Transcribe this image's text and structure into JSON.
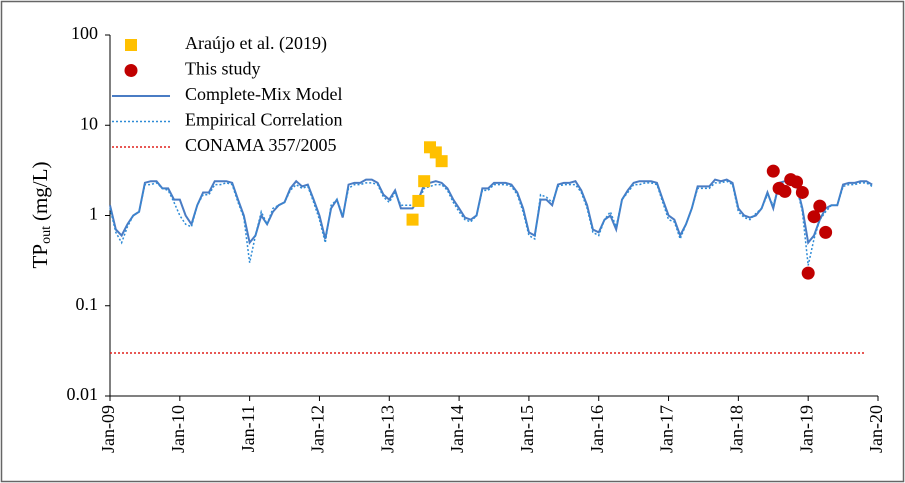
{
  "chart_data": {
    "type": "line",
    "y_label": {
      "main": "TP",
      "sub": "out",
      "unit": "(mg/L)"
    },
    "log_y": true,
    "ylim": [
      0.01,
      100
    ],
    "yticks": [
      0.01,
      0.1,
      1,
      10,
      100
    ],
    "xlim": [
      "2009-01",
      "2020-01"
    ],
    "xticks": [
      {
        "value": "2009-01",
        "label": "Jan-09"
      },
      {
        "value": "2010-01",
        "label": "Jan-10"
      },
      {
        "value": "2011-01",
        "label": "Jan-11"
      },
      {
        "value": "2012-01",
        "label": "Jan-12"
      },
      {
        "value": "2013-01",
        "label": "Jan-13"
      },
      {
        "value": "2014-01",
        "label": "Jan-14"
      },
      {
        "value": "2015-01",
        "label": "Jan-15"
      },
      {
        "value": "2016-01",
        "label": "Jan-16"
      },
      {
        "value": "2017-01",
        "label": "Jan-17"
      },
      {
        "value": "2018-01",
        "label": "Jan-18"
      },
      {
        "value": "2019-01",
        "label": "Jan-19"
      },
      {
        "value": "2020-01",
        "label": "Jan-20"
      }
    ],
    "legend_position": "upper-left",
    "x": [
      "2009-01",
      "2009-02",
      "2009-03",
      "2009-04",
      "2009-05",
      "2009-06",
      "2009-07",
      "2009-08",
      "2009-09",
      "2009-10",
      "2009-11",
      "2009-12",
      "2010-01",
      "2010-02",
      "2010-03",
      "2010-04",
      "2010-05",
      "2010-06",
      "2010-07",
      "2010-08",
      "2010-09",
      "2010-10",
      "2010-11",
      "2010-12",
      "2011-01",
      "2011-02",
      "2011-03",
      "2011-04",
      "2011-05",
      "2011-06",
      "2011-07",
      "2011-08",
      "2011-09",
      "2011-10",
      "2011-11",
      "2011-12",
      "2012-01",
      "2012-02",
      "2012-03",
      "2012-04",
      "2012-05",
      "2012-06",
      "2012-07",
      "2012-08",
      "2012-09",
      "2012-10",
      "2012-11",
      "2012-12",
      "2013-01",
      "2013-02",
      "2013-03",
      "2013-04",
      "2013-05",
      "2013-06",
      "2013-07",
      "2013-08",
      "2013-09",
      "2013-10",
      "2013-11",
      "2013-12",
      "2014-01",
      "2014-02",
      "2014-03",
      "2014-04",
      "2014-05",
      "2014-06",
      "2014-07",
      "2014-08",
      "2014-09",
      "2014-10",
      "2014-11",
      "2014-12",
      "2015-01",
      "2015-02",
      "2015-03",
      "2015-04",
      "2015-05",
      "2015-06",
      "2015-07",
      "2015-08",
      "2015-09",
      "2015-10",
      "2015-11",
      "2015-12",
      "2016-01",
      "2016-02",
      "2016-03",
      "2016-04",
      "2016-05",
      "2016-06",
      "2016-07",
      "2016-08",
      "2016-09",
      "2016-10",
      "2016-11",
      "2016-12",
      "2017-01",
      "2017-02",
      "2017-03",
      "2017-04",
      "2017-05",
      "2017-06",
      "2017-07",
      "2017-08",
      "2017-09",
      "2017-10",
      "2017-11",
      "2017-12",
      "2018-01",
      "2018-02",
      "2018-03",
      "2018-04",
      "2018-05",
      "2018-06",
      "2018-07",
      "2018-08",
      "2018-09",
      "2018-10",
      "2018-11",
      "2018-12",
      "2019-01",
      "2019-02",
      "2019-03",
      "2019-04",
      "2019-05",
      "2019-06",
      "2019-07",
      "2019-08",
      "2019-09",
      "2019-10",
      "2019-11",
      "2019-12"
    ],
    "series": [
      {
        "name": "Araújo et al. (2019)",
        "type": "scatter",
        "marker": "square",
        "color": "#ffc000",
        "x": [
          "2013-05",
          "2013-06",
          "2013-07",
          "2013-08",
          "2013-09",
          "2013-10"
        ],
        "values": [
          0.9,
          1.45,
          2.4,
          5.7,
          5.0,
          4.0
        ]
      },
      {
        "name": "This study",
        "type": "scatter",
        "marker": "circle",
        "color": "#c00000",
        "x": [
          "2018-07",
          "2018-08",
          "2018-09",
          "2018-10",
          "2018-11",
          "2018-12",
          "2019-01",
          "2019-02",
          "2019-03",
          "2019-04"
        ],
        "values": [
          3.1,
          2.0,
          1.85,
          2.5,
          2.35,
          1.8,
          0.23,
          0.97,
          1.27,
          0.65
        ]
      },
      {
        "name": "Complete-Mix Model",
        "type": "line",
        "style": "solid",
        "color": "#4a7cc4",
        "values": [
          1.3,
          0.7,
          0.6,
          0.8,
          1.0,
          1.1,
          2.3,
          2.4,
          2.4,
          2.0,
          2.0,
          1.5,
          1.5,
          1.0,
          0.8,
          1.3,
          1.8,
          1.8,
          2.4,
          2.4,
          2.4,
          2.3,
          1.5,
          1.0,
          0.5,
          0.6,
          1.0,
          0.8,
          1.1,
          1.3,
          1.4,
          2.0,
          2.4,
          2.1,
          2.2,
          1.5,
          1.0,
          0.55,
          1.2,
          1.5,
          0.95,
          2.2,
          2.3,
          2.3,
          2.5,
          2.5,
          2.3,
          1.7,
          1.5,
          1.9,
          1.2,
          1.2,
          1.2,
          1.5,
          2.2,
          2.3,
          2.4,
          2.3,
          2.0,
          1.5,
          1.2,
          0.95,
          0.9,
          1.0,
          2.0,
          2.0,
          2.3,
          2.3,
          2.3,
          2.2,
          1.8,
          1.2,
          0.65,
          0.6,
          1.5,
          1.5,
          1.3,
          2.2,
          2.3,
          2.3,
          2.4,
          1.9,
          1.3,
          0.7,
          0.65,
          0.9,
          1.0,
          0.7,
          1.5,
          1.9,
          2.3,
          2.4,
          2.4,
          2.4,
          2.3,
          1.5,
          1.0,
          0.9,
          0.6,
          0.8,
          1.2,
          2.1,
          2.1,
          2.1,
          2.5,
          2.4,
          2.5,
          2.3,
          1.2,
          1.0,
          0.95,
          1.0,
          1.2,
          1.8,
          1.2,
          2.3,
          2.4,
          2.4,
          2.2,
          1.2,
          0.5,
          0.6,
          0.9,
          1.2,
          1.3,
          1.3,
          2.2,
          2.3,
          2.3,
          2.4,
          2.4,
          2.2
        ]
      },
      {
        "name": "Empirical Correlation",
        "type": "line",
        "style": "dotted",
        "color": "#2e8bd6",
        "values": [
          1.2,
          0.65,
          0.5,
          0.75,
          1.0,
          1.1,
          2.2,
          2.2,
          2.3,
          2.0,
          1.9,
          1.4,
          1.0,
          0.8,
          0.75,
          1.3,
          1.7,
          1.7,
          2.2,
          2.2,
          2.3,
          2.2,
          1.4,
          0.95,
          0.3,
          0.6,
          1.1,
          0.8,
          1.2,
          1.3,
          1.4,
          1.9,
          2.2,
          2.0,
          2.1,
          1.4,
          0.9,
          0.5,
          1.3,
          1.5,
          1.0,
          2.0,
          2.2,
          2.2,
          2.3,
          2.3,
          2.2,
          1.6,
          1.4,
          1.8,
          1.3,
          1.3,
          1.3,
          1.4,
          2.0,
          2.1,
          2.2,
          2.2,
          1.9,
          1.4,
          1.1,
          0.9,
          0.85,
          1.0,
          1.9,
          1.9,
          2.2,
          2.2,
          2.2,
          2.1,
          1.7,
          1.1,
          0.6,
          0.55,
          1.7,
          1.6,
          1.4,
          2.1,
          2.2,
          2.2,
          2.2,
          1.8,
          1.2,
          0.65,
          0.6,
          0.9,
          1.1,
          0.75,
          1.5,
          1.8,
          2.2,
          2.2,
          2.3,
          2.3,
          2.2,
          1.4,
          0.9,
          0.85,
          0.55,
          0.8,
          1.2,
          2.0,
          2.0,
          2.0,
          2.3,
          2.3,
          2.4,
          2.2,
          1.1,
          0.95,
          0.9,
          1.05,
          1.2,
          1.7,
          1.3,
          2.2,
          2.3,
          2.3,
          2.1,
          1.1,
          0.28,
          0.55,
          0.9,
          1.1,
          1.3,
          1.3,
          2.1,
          2.2,
          2.2,
          2.3,
          2.3,
          2.1
        ]
      },
      {
        "name": "CONAMA 357/2005",
        "type": "hline",
        "style": "dotted",
        "color": "#e0201b",
        "value": 0.03
      }
    ]
  }
}
